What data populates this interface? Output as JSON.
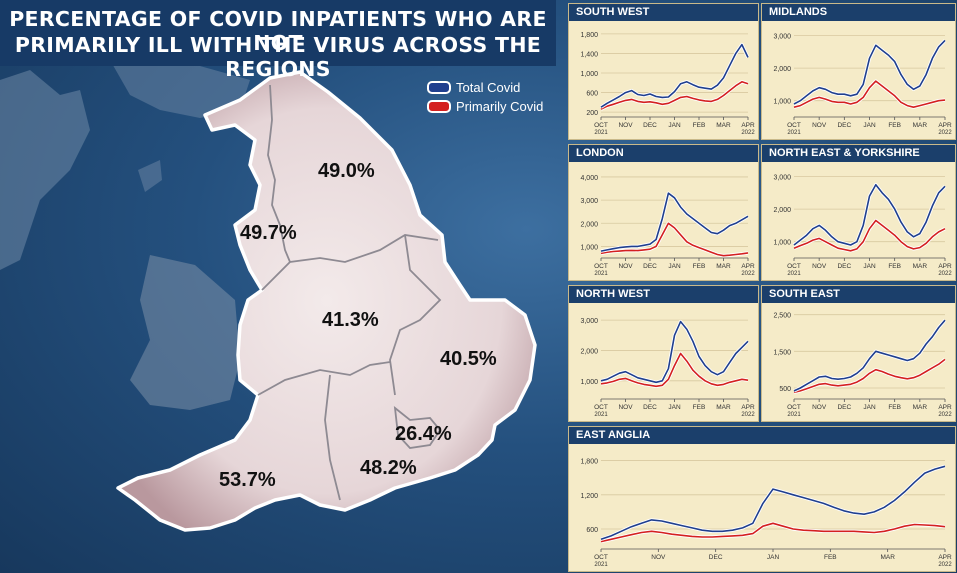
{
  "title_lines": [
    "PERCENTAGE OF COVID INPATIENTS WHO ARE NOT",
    "PRIMARILY ILL WITH THE VIRUS ACROSS THE REGIONS"
  ],
  "legend": [
    {
      "label": "Total Covid",
      "color": "#1f3f8f"
    },
    {
      "label": "Primarily Covid",
      "color": "#d42020"
    }
  ],
  "map_labels": [
    {
      "region": "North East & Yorkshire",
      "value": "49.0%"
    },
    {
      "region": "North West",
      "value": "49.7%"
    },
    {
      "region": "Midlands",
      "value": "41.3%"
    },
    {
      "region": "East Anglia",
      "value": "40.5%"
    },
    {
      "region": "London",
      "value": "26.4%"
    },
    {
      "region": "South West",
      "value": "53.7%"
    },
    {
      "region": "South East",
      "value": "48.2%"
    }
  ],
  "chart_data": [
    {
      "type": "line",
      "title": "SOUTH WEST",
      "yticks": [
        "1,800",
        "1,400",
        "1,000",
        "600",
        "200"
      ],
      "ytick_values": [
        1800,
        1400,
        1000,
        600,
        200
      ],
      "ylim": [
        100,
        1900
      ],
      "xticks": [
        [
          "OCT",
          "2021"
        ],
        [
          "NOV",
          ""
        ],
        [
          "DEC",
          ""
        ],
        [
          "JAN",
          ""
        ],
        [
          "FEB",
          ""
        ],
        [
          "MAR",
          ""
        ],
        [
          "APR",
          "2022"
        ]
      ],
      "series": [
        {
          "name": "Total Covid",
          "values": [
            300,
            380,
            450,
            520,
            600,
            640,
            560,
            540,
            570,
            520,
            500,
            510,
            620,
            780,
            820,
            760,
            710,
            690,
            670,
            750,
            900,
            1150,
            1400,
            1580,
            1320
          ]
        },
        {
          "name": "Primarily Covid",
          "values": [
            260,
            320,
            360,
            400,
            440,
            460,
            420,
            400,
            410,
            390,
            360,
            380,
            440,
            500,
            520,
            480,
            450,
            430,
            420,
            460,
            540,
            640,
            740,
            820,
            780
          ]
        }
      ]
    },
    {
      "type": "line",
      "title": "MIDLANDS",
      "yticks": [
        "3,000",
        "2,000",
        "1,000"
      ],
      "ytick_values": [
        3000,
        2000,
        1000
      ],
      "ylim": [
        500,
        3200
      ],
      "xticks": [
        [
          "OCT",
          "2021"
        ],
        [
          "NOV",
          ""
        ],
        [
          "DEC",
          ""
        ],
        [
          "JAN",
          ""
        ],
        [
          "FEB",
          ""
        ],
        [
          "MAR",
          ""
        ],
        [
          "APR",
          "2022"
        ]
      ],
      "series": [
        {
          "name": "Total Covid",
          "values": [
            900,
            1000,
            1150,
            1300,
            1400,
            1350,
            1250,
            1200,
            1200,
            1150,
            1200,
            1500,
            2300,
            2700,
            2550,
            2400,
            2200,
            1800,
            1500,
            1350,
            1450,
            1800,
            2300,
            2650,
            2850
          ]
        },
        {
          "name": "Primarily Covid",
          "values": [
            800,
            850,
            950,
            1050,
            1100,
            1050,
            980,
            950,
            950,
            900,
            950,
            1100,
            1400,
            1600,
            1450,
            1300,
            1150,
            950,
            850,
            800,
            850,
            900,
            950,
            1000,
            1020
          ]
        }
      ]
    },
    {
      "type": "line",
      "title": "LONDON",
      "yticks": [
        "4,000",
        "3,000",
        "2,000",
        "1,000"
      ],
      "ytick_values": [
        4000,
        3000,
        2000,
        1000
      ],
      "ylim": [
        500,
        4300
      ],
      "xticks": [
        [
          "OCT",
          "2021"
        ],
        [
          "NOV",
          ""
        ],
        [
          "DEC",
          ""
        ],
        [
          "JAN",
          ""
        ],
        [
          "FEB",
          ""
        ],
        [
          "MAR",
          ""
        ],
        [
          "APR",
          "2022"
        ]
      ],
      "series": [
        {
          "name": "Total Covid",
          "values": [
            800,
            850,
            900,
            950,
            980,
            1000,
            1000,
            1050,
            1100,
            1300,
            2200,
            3300,
            3100,
            2700,
            2400,
            2200,
            2000,
            1800,
            1600,
            1550,
            1700,
            1900,
            2000,
            2150,
            2300
          ]
        },
        {
          "name": "Primarily Covid",
          "values": [
            700,
            750,
            780,
            800,
            820,
            830,
            820,
            850,
            880,
            1000,
            1500,
            2000,
            1800,
            1500,
            1200,
            1050,
            950,
            850,
            750,
            650,
            600,
            620,
            650,
            680,
            720
          ]
        }
      ]
    },
    {
      "type": "line",
      "title": "NORTH EAST & YORKSHIRE",
      "yticks": [
        "3,000",
        "2,000",
        "1,000"
      ],
      "ytick_values": [
        3000,
        2000,
        1000
      ],
      "ylim": [
        500,
        3200
      ],
      "xticks": [
        [
          "OCT",
          "2021"
        ],
        [
          "NOV",
          ""
        ],
        [
          "DEC",
          ""
        ],
        [
          "JAN",
          ""
        ],
        [
          "FEB",
          ""
        ],
        [
          "MAR",
          ""
        ],
        [
          "APR",
          "2022"
        ]
      ],
      "series": [
        {
          "name": "Total Covid",
          "values": [
            900,
            1050,
            1200,
            1400,
            1500,
            1350,
            1150,
            1000,
            950,
            900,
            1000,
            1500,
            2400,
            2750,
            2500,
            2300,
            2000,
            1600,
            1300,
            1150,
            1250,
            1600,
            2100,
            2500,
            2700
          ]
        },
        {
          "name": "Primarily Covid",
          "values": [
            800,
            880,
            950,
            1050,
            1100,
            1000,
            900,
            800,
            760,
            720,
            780,
            1000,
            1400,
            1650,
            1500,
            1350,
            1200,
            1000,
            850,
            780,
            820,
            950,
            1150,
            1300,
            1400
          ]
        }
      ]
    },
    {
      "type": "line",
      "title": "NORTH WEST",
      "yticks": [
        "3,000",
        "2,000",
        "1,000"
      ],
      "ytick_values": [
        3000,
        2000,
        1000
      ],
      "ylim": [
        400,
        3300
      ],
      "xticks": [
        [
          "OCT",
          "2021"
        ],
        [
          "NOV",
          ""
        ],
        [
          "DEC",
          ""
        ],
        [
          "JAN",
          ""
        ],
        [
          "FEB",
          ""
        ],
        [
          "MAR",
          ""
        ],
        [
          "APR",
          "2022"
        ]
      ],
      "series": [
        {
          "name": "Total Covid",
          "values": [
            1000,
            1050,
            1150,
            1250,
            1300,
            1200,
            1100,
            1050,
            1000,
            950,
            1000,
            1400,
            2500,
            2950,
            2700,
            2300,
            1800,
            1500,
            1300,
            1200,
            1300,
            1600,
            1900,
            2100,
            2300
          ]
        },
        {
          "name": "Primarily Covid",
          "values": [
            900,
            930,
            980,
            1050,
            1080,
            1000,
            930,
            880,
            850,
            820,
            850,
            1050,
            1500,
            1900,
            1650,
            1350,
            1150,
            1000,
            900,
            850,
            880,
            950,
            1000,
            1050,
            1020
          ]
        }
      ]
    },
    {
      "type": "line",
      "title": "SOUTH EAST",
      "yticks": [
        "2,500",
        "1,500",
        "500"
      ],
      "ytick_values": [
        2500,
        1500,
        500
      ],
      "ylim": [
        200,
        2600
      ],
      "xticks": [
        [
          "OCT",
          "2021"
        ],
        [
          "NOV",
          ""
        ],
        [
          "DEC",
          ""
        ],
        [
          "JAN",
          ""
        ],
        [
          "FEB",
          ""
        ],
        [
          "MAR",
          ""
        ],
        [
          "APR",
          "2022"
        ]
      ],
      "series": [
        {
          "name": "Total Covid",
          "values": [
            420,
            500,
            600,
            700,
            800,
            820,
            760,
            740,
            760,
            800,
            900,
            1050,
            1300,
            1500,
            1450,
            1400,
            1350,
            1300,
            1250,
            1300,
            1450,
            1700,
            1900,
            2150,
            2350
          ]
        },
        {
          "name": "Primarily Covid",
          "values": [
            380,
            420,
            480,
            540,
            600,
            620,
            580,
            560,
            580,
            600,
            660,
            760,
            900,
            1000,
            950,
            880,
            820,
            780,
            750,
            780,
            850,
            950,
            1050,
            1150,
            1280
          ]
        }
      ]
    },
    {
      "type": "line",
      "title": "EAST ANGLIA",
      "yticks": [
        "1,800",
        "1,200",
        "600"
      ],
      "ytick_values": [
        1800,
        1200,
        600
      ],
      "ylim": [
        250,
        1950
      ],
      "xticks": [
        [
          "OCT",
          "2021"
        ],
        [
          "NOV",
          ""
        ],
        [
          "DEC",
          ""
        ],
        [
          "JAN",
          ""
        ],
        [
          "FEB",
          ""
        ],
        [
          "MAR",
          ""
        ],
        [
          "APR",
          "2022"
        ]
      ],
      "series": [
        {
          "name": "Total Covid",
          "values": [
            420,
            480,
            560,
            640,
            700,
            760,
            740,
            700,
            660,
            620,
            580,
            560,
            560,
            580,
            620,
            700,
            1050,
            1300,
            1250,
            1200,
            1150,
            1100,
            1050,
            980,
            920,
            880,
            860,
            900,
            980,
            1100,
            1250,
            1420,
            1580,
            1650,
            1700
          ]
        },
        {
          "name": "Primarily Covid",
          "values": [
            380,
            420,
            460,
            500,
            540,
            560,
            540,
            510,
            490,
            470,
            460,
            460,
            470,
            480,
            490,
            520,
            650,
            700,
            650,
            600,
            580,
            570,
            560,
            560,
            560,
            560,
            550,
            540,
            560,
            600,
            650,
            680,
            670,
            660,
            640
          ]
        }
      ]
    }
  ]
}
